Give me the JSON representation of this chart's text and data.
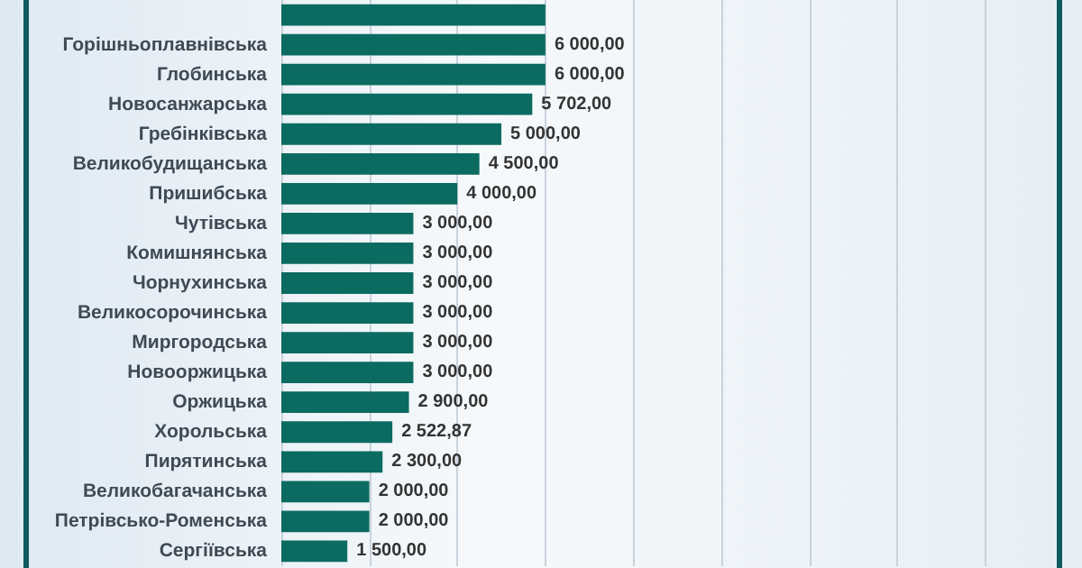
{
  "chart_data": {
    "type": "bar",
    "orientation": "horizontal",
    "categories": [
      null,
      "Горішньоплавнівська",
      "Глобинська",
      "Новосанжарська",
      "Гребінківська",
      "Великобудищанська",
      "Пришибська",
      "Чутівська",
      "Комишнянська",
      "Чорнухинська",
      "Великосорочинська",
      "Миргородська",
      "Новооржицька",
      "Оржицька",
      "Хорольська",
      "Пирятинська",
      "Великобагачанська",
      "Петрівсько-Роменська",
      "Сергіївська"
    ],
    "values": [
      6000,
      6000,
      6000,
      5702,
      5000,
      4500,
      4000,
      3000,
      3000,
      3000,
      3000,
      3000,
      3000,
      2900,
      2522.87,
      2300,
      2000,
      2000,
      1500
    ],
    "value_labels": [
      null,
      "6 000,00",
      "6 000,00",
      "5 702,00",
      "5 000,00",
      "4 500,00",
      "4 000,00",
      "3 000,00",
      "3 000,00",
      "3 000,00",
      "3 000,00",
      "3 000,00",
      "3 000,00",
      "2 900,00",
      "2 522,87",
      "2 300,00",
      "2 000,00",
      "2 000,00",
      "1 500,00"
    ],
    "color": "#0b6b61",
    "xlim": [
      0,
      17700
    ],
    "xticks": [
      {
        "value": 0,
        "label": null
      },
      {
        "value": 2000,
        "label": null
      },
      {
        "value": 4000,
        "label": null
      },
      {
        "value": 6000,
        "label": null
      },
      {
        "value": 8000,
        "label": null
      },
      {
        "value": 10000,
        "label": null
      },
      {
        "value": 12000,
        "label": null
      },
      {
        "value": 14000,
        "label": null
      },
      {
        "value": 16000,
        "label": null
      }
    ],
    "grid": "x",
    "tick_labels": "y"
  }
}
